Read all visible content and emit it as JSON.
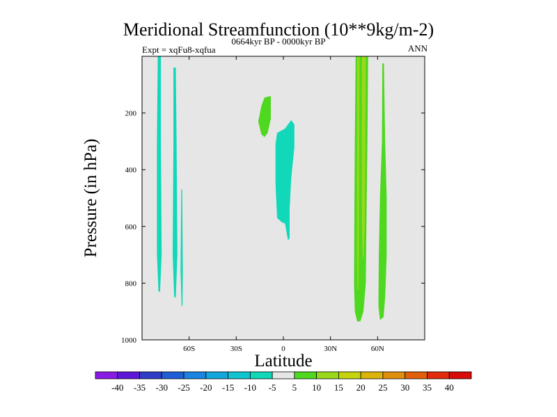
{
  "chart_data": {
    "type": "heatmap",
    "title": "Meridional Streamfunction (10**9kg/m-2)",
    "subtitle_left": "Expt = xqFu8-xqfua",
    "subtitle_center": "0664kyr BP - 0000kyr BP",
    "subtitle_right": "ANN",
    "xlabel": "Latitude",
    "ylabel": "Pressure (in hPa)",
    "xlim": [
      -90,
      90
    ],
    "ylim": [
      0,
      1000
    ],
    "y_inverted": true,
    "background_value_color": "#e6e6e6",
    "x_ticks": [
      {
        "value": -60,
        "label": "60S"
      },
      {
        "value": -30,
        "label": "30S"
      },
      {
        "value": 0,
        "label": "0"
      },
      {
        "value": 30,
        "label": "30N"
      },
      {
        "value": 60,
        "label": "60N"
      }
    ],
    "y_ticks": [
      {
        "value": 200,
        "label": "200"
      },
      {
        "value": 400,
        "label": "400"
      },
      {
        "value": 600,
        "label": "600"
      },
      {
        "value": 800,
        "label": "800"
      },
      {
        "value": 1000,
        "label": "1000"
      }
    ],
    "colorbar": {
      "labels": [
        "-40",
        "-35",
        "-30",
        "-25",
        "-20",
        "-15",
        "-10",
        "-5",
        "5",
        "10",
        "15",
        "20",
        "25",
        "30",
        "35",
        "40"
      ],
      "colors": [
        "#8a1be6",
        "#5e17d8",
        "#2f3dc8",
        "#1f5fd6",
        "#1b84e0",
        "#12a6dc",
        "#10c4d0",
        "#10d8b8",
        "#e6e6e6",
        "#4ed81f",
        "#9ad81a",
        "#c6d40e",
        "#dcb40c",
        "#e08f0c",
        "#e2600c",
        "#e22a0c",
        "#d80a0a"
      ]
    },
    "regions": [
      {
        "name": "cyan-strip-1",
        "value": -7,
        "color": "#10d8b8",
        "points": [
          [
            -80,
            0
          ],
          [
            -78,
            0
          ],
          [
            -78,
            300
          ],
          [
            -77.5,
            700
          ],
          [
            -78.5,
            830
          ],
          [
            -79.5,
            830
          ],
          [
            -80.5,
            700
          ],
          [
            -80.5,
            300
          ]
        ]
      },
      {
        "name": "cyan-strip-2",
        "value": -7,
        "color": "#10d8b8",
        "points": [
          [
            -70,
            40
          ],
          [
            -68.5,
            40
          ],
          [
            -68,
            300
          ],
          [
            -67.5,
            700
          ],
          [
            -68.5,
            850
          ],
          [
            -69.5,
            850
          ],
          [
            -70.5,
            700
          ],
          [
            -70,
            300
          ]
        ]
      },
      {
        "name": "cyan-strip-3",
        "value": -7,
        "color": "#10d8b8",
        "points": [
          [
            -65,
            470
          ],
          [
            -64.4,
            470
          ],
          [
            -64,
            750
          ],
          [
            -64.2,
            880
          ],
          [
            -64.8,
            880
          ],
          [
            -65.5,
            750
          ]
        ]
      },
      {
        "name": "cyan-equatorial-cell",
        "value": -8,
        "color": "#10d8b8",
        "points": [
          [
            1,
            255
          ],
          [
            5,
            225
          ],
          [
            7,
            240
          ],
          [
            7,
            320
          ],
          [
            5,
            430
          ],
          [
            4,
            540
          ],
          [
            4,
            640
          ],
          [
            3,
            650
          ],
          [
            1,
            590
          ],
          [
            -1,
            585
          ],
          [
            -4,
            570
          ],
          [
            -5,
            450
          ],
          [
            -5,
            310
          ],
          [
            -4,
            270
          ]
        ]
      },
      {
        "name": "green-upper-cell",
        "value": 7,
        "color": "#4ed81f",
        "points": [
          [
            -12,
            145
          ],
          [
            -8,
            140
          ],
          [
            -8,
            220
          ],
          [
            -10,
            270
          ],
          [
            -12,
            285
          ],
          [
            -14,
            275
          ],
          [
            -16,
            230
          ],
          [
            -14,
            175
          ]
        ]
      },
      {
        "name": "green-band-nh",
        "value": 8,
        "color": "#4ed81f",
        "points": [
          [
            46,
            0
          ],
          [
            54,
            0
          ],
          [
            53.5,
            300
          ],
          [
            53,
            550
          ],
          [
            52.5,
            800
          ],
          [
            51,
            900
          ],
          [
            49,
            935
          ],
          [
            47,
            935
          ],
          [
            45.5,
            900
          ],
          [
            45,
            800
          ],
          [
            45.2,
            550
          ],
          [
            45.5,
            300
          ]
        ]
      },
      {
        "name": "yellow-green-core-1",
        "value": 12,
        "color": "#9ad81a",
        "points": [
          [
            47,
            0
          ],
          [
            48.5,
            0
          ],
          [
            48.3,
            400
          ],
          [
            48,
            700
          ],
          [
            47.8,
            820
          ],
          [
            47.2,
            830
          ],
          [
            46.8,
            700
          ],
          [
            46.8,
            400
          ]
        ]
      },
      {
        "name": "yellow-green-core-2",
        "value": 12,
        "color": "#9ad81a",
        "points": [
          [
            50,
            0
          ],
          [
            52.5,
            0
          ],
          [
            52.2,
            300
          ],
          [
            51.8,
            600
          ],
          [
            51.2,
            700
          ],
          [
            50.5,
            720
          ],
          [
            50,
            600
          ],
          [
            49.9,
            300
          ]
        ]
      },
      {
        "name": "green-strip-60n",
        "value": 7,
        "color": "#4ed81f",
        "points": [
          [
            63,
            25
          ],
          [
            64,
            25
          ],
          [
            64.8,
            300
          ],
          [
            65.8,
            500
          ],
          [
            65.8,
            700
          ],
          [
            64.8,
            850
          ],
          [
            63.8,
            920
          ],
          [
            61.5,
            930
          ],
          [
            60.5,
            880
          ],
          [
            60.8,
            700
          ],
          [
            61.5,
            500
          ],
          [
            62.8,
            300
          ]
        ]
      }
    ]
  }
}
